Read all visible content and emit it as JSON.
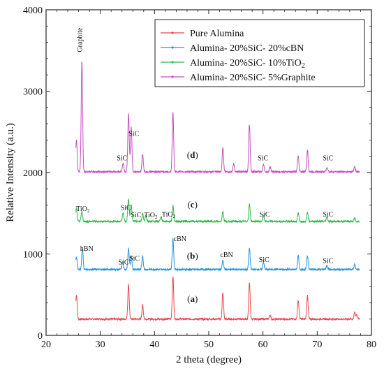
{
  "chart_data": {
    "type": "line",
    "xlabel": "2 theta (degree)",
    "ylabel": "Relative Intensity (a.u.)",
    "xlim": [
      20,
      80
    ],
    "ylim": [
      0,
      4000
    ],
    "xticks": [
      "20",
      "30",
      "40",
      "50",
      "60",
      "70",
      "80"
    ],
    "yticks": [
      "0",
      "1000",
      "2000",
      "3000",
      "4000"
    ],
    "legend_position": "top-right",
    "series": [
      {
        "name": "Pure Alumina",
        "color": "#e8474b",
        "baseline": 200,
        "peaks": [
          [
            25.6,
            500
          ],
          [
            35.2,
            630
          ],
          [
            37.8,
            370
          ],
          [
            43.4,
            730
          ],
          [
            52.6,
            520
          ],
          [
            57.5,
            640
          ],
          [
            61.3,
            250
          ],
          [
            66.5,
            430
          ],
          [
            68.2,
            490
          ],
          [
            76.9,
            280
          ],
          [
            77.3,
            260
          ]
        ]
      },
      {
        "name": "Alumina- 20%SiC- 20%cBN",
        "color": "#2a92d6",
        "baseline": 810,
        "peaks": [
          [
            25.6,
            960
          ],
          [
            26.7,
            1060
          ],
          [
            34.1,
            900
          ],
          [
            35.2,
            1060
          ],
          [
            35.7,
            980
          ],
          [
            37.8,
            970
          ],
          [
            43.4,
            1190
          ],
          [
            52.6,
            920
          ],
          [
            57.5,
            1070
          ],
          [
            60.1,
            900
          ],
          [
            66.5,
            980
          ],
          [
            68.2,
            980
          ],
          [
            71.8,
            860
          ],
          [
            76.9,
            870
          ]
        ]
      },
      {
        "name": "Alumina- 20%SiC- 10%TiO2",
        "color": "#2db84a",
        "baseline": 1400,
        "peaks": [
          [
            25.6,
            1560
          ],
          [
            26.6,
            1520
          ],
          [
            34.2,
            1510
          ],
          [
            35.2,
            1680
          ],
          [
            35.7,
            1600
          ],
          [
            37.8,
            1500
          ],
          [
            38.4,
            1480
          ],
          [
            41.2,
            1460
          ],
          [
            43.4,
            1600
          ],
          [
            52.6,
            1520
          ],
          [
            57.5,
            1610
          ],
          [
            60.1,
            1470
          ],
          [
            66.5,
            1500
          ],
          [
            68.2,
            1520
          ],
          [
            71.8,
            1460
          ],
          [
            76.9,
            1440
          ]
        ]
      },
      {
        "name": "Alumina- 20%SiC- 5%Graphite",
        "color": "#c44fc0",
        "baseline": 2010,
        "peaks": [
          [
            25.6,
            2400
          ],
          [
            26.6,
            3370
          ],
          [
            34.2,
            2120
          ],
          [
            35.2,
            2730
          ],
          [
            35.7,
            2570
          ],
          [
            37.8,
            2230
          ],
          [
            43.4,
            2740
          ],
          [
            52.6,
            2310
          ],
          [
            54.6,
            2110
          ],
          [
            57.5,
            2590
          ],
          [
            60.1,
            2100
          ],
          [
            61.3,
            2070
          ],
          [
            66.5,
            2200
          ],
          [
            68.2,
            2280
          ],
          [
            71.8,
            2060
          ],
          [
            76.9,
            2080
          ]
        ]
      }
    ],
    "annotations": [
      {
        "text": "Graphite",
        "x": 26.6,
        "y": 3480,
        "rotate": true
      },
      {
        "text": "SiC",
        "x": 36.2,
        "y": 2450
      },
      {
        "text": "SiC",
        "x": 34.0,
        "y": 2150
      },
      {
        "text": "(d)",
        "x": 47.0,
        "y": 2180,
        "bold": true
      },
      {
        "text": "SiC",
        "x": 60.0,
        "y": 2150
      },
      {
        "text": "SiC",
        "x": 72.0,
        "y": 2150
      },
      {
        "text": "TiO2",
        "x": 26.8,
        "y": 1530
      },
      {
        "text": "SiC",
        "x": 34.7,
        "y": 1540
      },
      {
        "text": "SiC",
        "x": 36.6,
        "y": 1450
      },
      {
        "text": "TiO2",
        "x": 39.3,
        "y": 1450
      },
      {
        "text": "TiO2",
        "x": 42.6,
        "y": 1460
      },
      {
        "text": "(c)",
        "x": 47.0,
        "y": 1570,
        "bold": true
      },
      {
        "text": "SiC",
        "x": 60.3,
        "y": 1460
      },
      {
        "text": "SiC",
        "x": 72.0,
        "y": 1460
      },
      {
        "text": "hBN",
        "x": 27.5,
        "y": 1040
      },
      {
        "text": "SiC",
        "x": 34.3,
        "y": 870
      },
      {
        "text": "SiC",
        "x": 36.3,
        "y": 920
      },
      {
        "text": "cBN",
        "x": 44.7,
        "y": 1160
      },
      {
        "text": "(b)",
        "x": 47.0,
        "y": 940,
        "bold": true
      },
      {
        "text": "cBN",
        "x": 53.3,
        "y": 960
      },
      {
        "text": "SiC",
        "x": 60.2,
        "y": 900
      },
      {
        "text": "SiC",
        "x": 72.0,
        "y": 890
      },
      {
        "text": "(a)",
        "x": 47.0,
        "y": 410,
        "bold": true
      }
    ]
  }
}
